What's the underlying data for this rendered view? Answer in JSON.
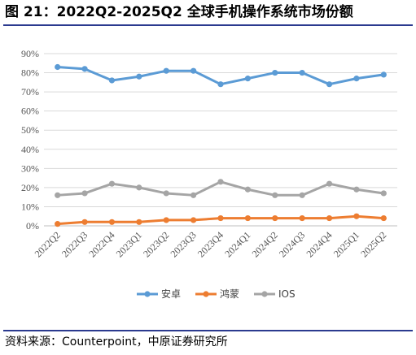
{
  "header": {
    "title": "图 21：2022Q2-2025Q2 全球手机操作系统市场份额"
  },
  "footer": {
    "source": "资料来源：Counterpoint，中原证券研究所"
  },
  "chart_data": {
    "type": "line",
    "title": "",
    "xlabel": "",
    "ylabel": "",
    "categories": [
      "2022Q2",
      "2022Q3",
      "2022Q4",
      "2023Q1",
      "2023Q2",
      "2023Q3",
      "2023Q4",
      "2024Q1",
      "2024Q2",
      "2024Q3",
      "2024Q4",
      "2025Q1",
      "2025Q2"
    ],
    "ylim": [
      0,
      90
    ],
    "y_ticks": [
      "0%",
      "10%",
      "20%",
      "30%",
      "40%",
      "50%",
      "60%",
      "70%",
      "80%",
      "90%"
    ],
    "grid": "horizontal",
    "legend_position": "bottom",
    "series": [
      {
        "name": "安卓",
        "color": "#5b9bd5",
        "values": [
          83,
          82,
          76,
          78,
          81,
          81,
          74,
          77,
          80,
          80,
          74,
          77,
          79
        ]
      },
      {
        "name": "鸿蒙",
        "color": "#ed7d31",
        "values": [
          1,
          2,
          2,
          2,
          3,
          3,
          4,
          4,
          4,
          4,
          4,
          5,
          4
        ]
      },
      {
        "name": "IOS",
        "color": "#a5a5a5",
        "values": [
          16,
          17,
          22,
          20,
          17,
          16,
          23,
          19,
          16,
          16,
          22,
          19,
          17
        ]
      }
    ]
  }
}
